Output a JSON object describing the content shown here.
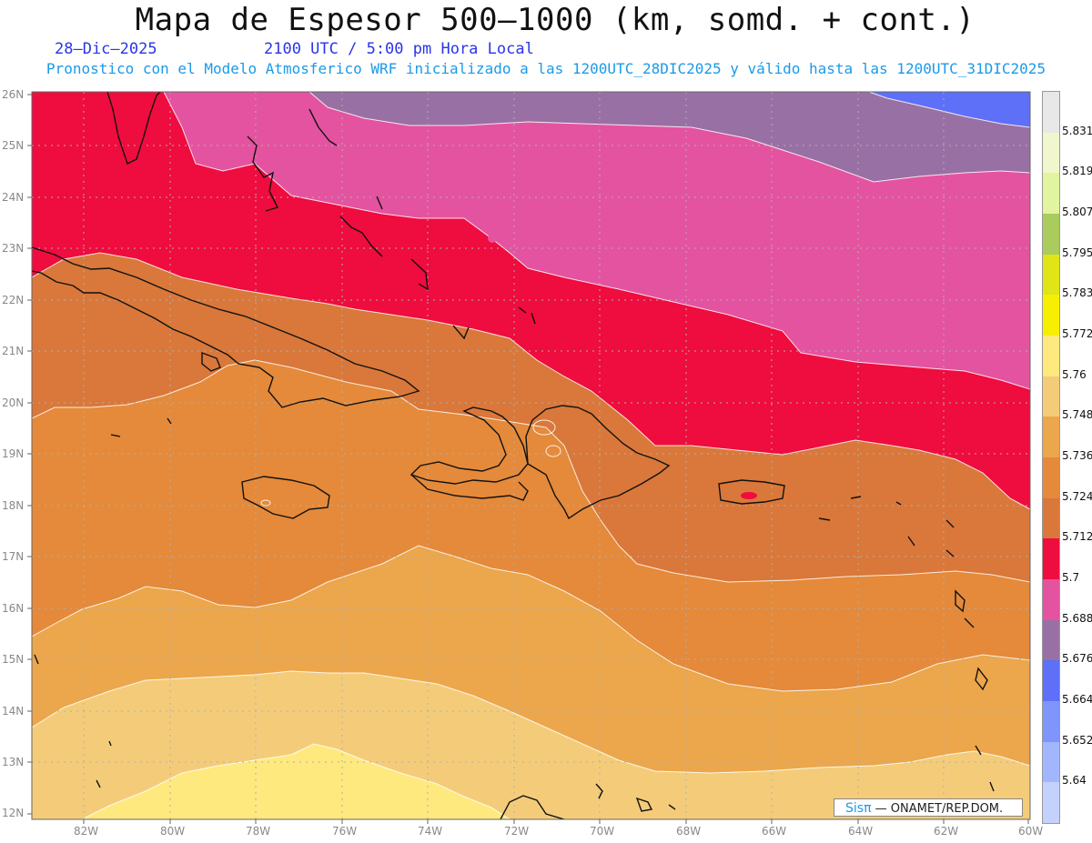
{
  "title": "Mapa de Espesor 500—1000 (km, somd. + cont.)",
  "date_label": "28—Dic—2025",
  "time_label": "2100 UTC / 5:00 pm Hora Local",
  "forecast_note": "Pronostico con el Modelo Atmosferico WRF inicializado a las 1200UTC_28DIC2025 y válido hasta las  1200UTC_31DIC2025",
  "credit": {
    "brand": "Sisπ",
    "org": "— ONAMET/REP.DOM."
  },
  "lat_labels": [
    "26N",
    "25N",
    "24N",
    "23N",
    "22N",
    "21N",
    "20N",
    "19N",
    "18N",
    "17N",
    "16N",
    "15N",
    "14N",
    "13N",
    "12N"
  ],
  "lon_labels": [
    "82W",
    "80W",
    "78W",
    "76W",
    "74W",
    "72W",
    "70W",
    "68W",
    "66W",
    "64W",
    "62W",
    "60W"
  ],
  "colorbar": {
    "levels": [
      "5.831",
      "5.819",
      "5.807",
      "5.795",
      "5.783",
      "5.772",
      "5.76",
      "5.748",
      "5.736",
      "5.724",
      "5.712",
      "5.7",
      "5.688",
      "5.676",
      "5.664",
      "5.652",
      "5.64"
    ],
    "colors": [
      "#e8e8e8",
      "#f2f6cc",
      "#e2f4a0",
      "#a9cc5c",
      "#dfe516",
      "#f7ef02",
      "#fde97e",
      "#f4cc79",
      "#eca64b",
      "#e48a3a",
      "#d9783a",
      "#ef0c3e",
      "#e453a0",
      "#9970a4",
      "#5e6ff8",
      "#7f95fc",
      "#a2b6fd",
      "#c5d1fd"
    ]
  },
  "layer_colors": {
    "c_676": "#9970a4",
    "c_664": "#5e6ff8",
    "c_688": "#e453a0",
    "c_700": "#ef0c3e",
    "c_712": "#d9783a",
    "c_724": "#e48a3a",
    "c_736": "#eca64b",
    "c_748": "#f4cc79",
    "c_760": "#fde97e"
  }
}
